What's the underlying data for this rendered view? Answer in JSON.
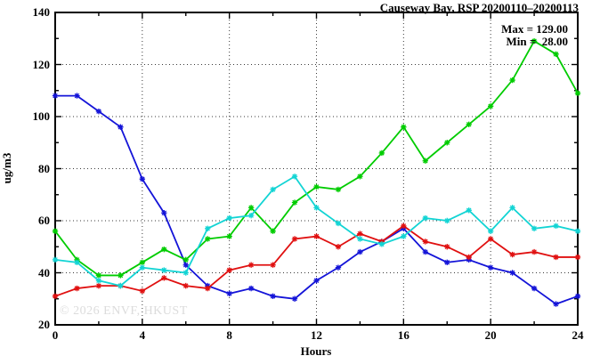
{
  "watermark": "© 2026 ENVF, HKUST",
  "chart_data": {
    "type": "line",
    "title": "Causeway Bay, RSP 20200110–20200113",
    "stats": {
      "max_label": "Max = 129.00",
      "min_label": "Min =  28.00"
    },
    "xlabel": "Hours",
    "ylabel": "ug/m3",
    "xlim": [
      0,
      24
    ],
    "ylim": [
      20,
      140
    ],
    "grid": true,
    "legend_position": "none",
    "x": [
      0,
      1,
      2,
      3,
      4,
      5,
      6,
      7,
      8,
      9,
      10,
      11,
      12,
      13,
      14,
      15,
      16,
      17,
      18,
      19,
      20,
      21,
      22,
      23,
      24
    ],
    "x_major_ticks": [
      0,
      4,
      8,
      12,
      16,
      20,
      24
    ],
    "x_minor_step": 2,
    "y_major_ticks": [
      20,
      40,
      60,
      80,
      100,
      120,
      140
    ],
    "y_minor_step": 10,
    "grid_x_hours": [
      4,
      8,
      12,
      16,
      20
    ],
    "grid_y_values": [
      40,
      60,
      80,
      100,
      120
    ],
    "series": [
      {
        "name": "series-blue",
        "color": "#1414d8",
        "values": [
          108,
          108,
          102,
          96,
          76,
          63,
          43,
          35,
          32,
          34,
          31,
          30,
          37,
          42,
          48,
          52,
          57,
          48,
          44,
          45,
          42,
          40,
          34,
          28,
          31
        ]
      },
      {
        "name": "series-red",
        "color": "#e01010",
        "values": [
          31,
          34,
          35,
          35,
          33,
          38,
          35,
          34,
          41,
          43,
          43,
          53,
          54,
          50,
          55,
          52,
          58,
          52,
          50,
          46,
          53,
          47,
          48,
          46,
          46
        ]
      },
      {
        "name": "series-green",
        "color": "#00cc00",
        "values": [
          56,
          45,
          39,
          39,
          44,
          49,
          45,
          53,
          54,
          65,
          56,
          67,
          73,
          72,
          77,
          86,
          96,
          83,
          90,
          97,
          104,
          114,
          129,
          124,
          109
        ]
      },
      {
        "name": "series-cyan",
        "color": "#12d4d4",
        "values": [
          45,
          44,
          37,
          35,
          42,
          41,
          40,
          57,
          61,
          62,
          72,
          77,
          65,
          59,
          53,
          51,
          54,
          61,
          60,
          64,
          56,
          65,
          57,
          58,
          56
        ]
      }
    ]
  }
}
